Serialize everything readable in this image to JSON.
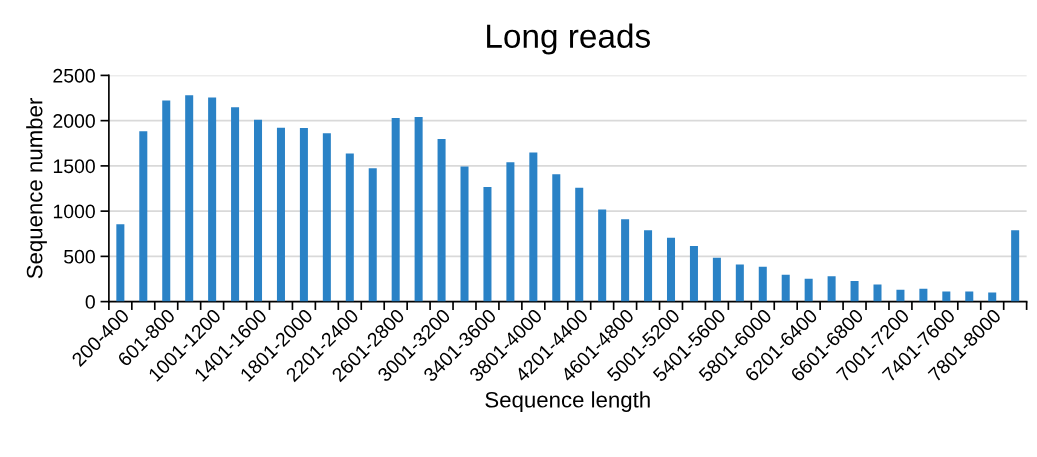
{
  "chart_data": {
    "type": "bar",
    "title": "Long reads",
    "xlabel": "Sequence length",
    "ylabel": "Sequence number",
    "categories": [
      "200-400",
      null,
      "601-800",
      null,
      "1001-1200",
      null,
      "1401-1600",
      null,
      "1801-2000",
      null,
      "2201-2400",
      null,
      "2601-2800",
      null,
      "3001-3200",
      null,
      "3401-3600",
      null,
      "3801-4000",
      null,
      "4201-4400",
      null,
      "4601-4800",
      null,
      "5001-5200",
      null,
      "5401-5600",
      null,
      "5801-6000",
      null,
      "6201-6400",
      null,
      "6601-6800",
      null,
      "7001-7200",
      null,
      "7401-7600",
      null,
      "7801-8000",
      null
    ],
    "values": [
      855,
      1884,
      2222,
      2281,
      2255,
      2148,
      2011,
      1922,
      1918,
      1860,
      1637,
      1474,
      2030,
      2040,
      1796,
      1493,
      1267,
      1540,
      1648,
      1407,
      1259,
      1019,
      911,
      789,
      707,
      615,
      485,
      411,
      385,
      296,
      252,
      281,
      229,
      189,
      130,
      141,
      111,
      111,
      100,
      789
    ],
    "color": "#2a82c6",
    "ylim": [
      0,
      2500
    ],
    "yticks": [
      0,
      500,
      1000,
      1500,
      2000,
      2500
    ],
    "grid": "y",
    "legend": false
  }
}
